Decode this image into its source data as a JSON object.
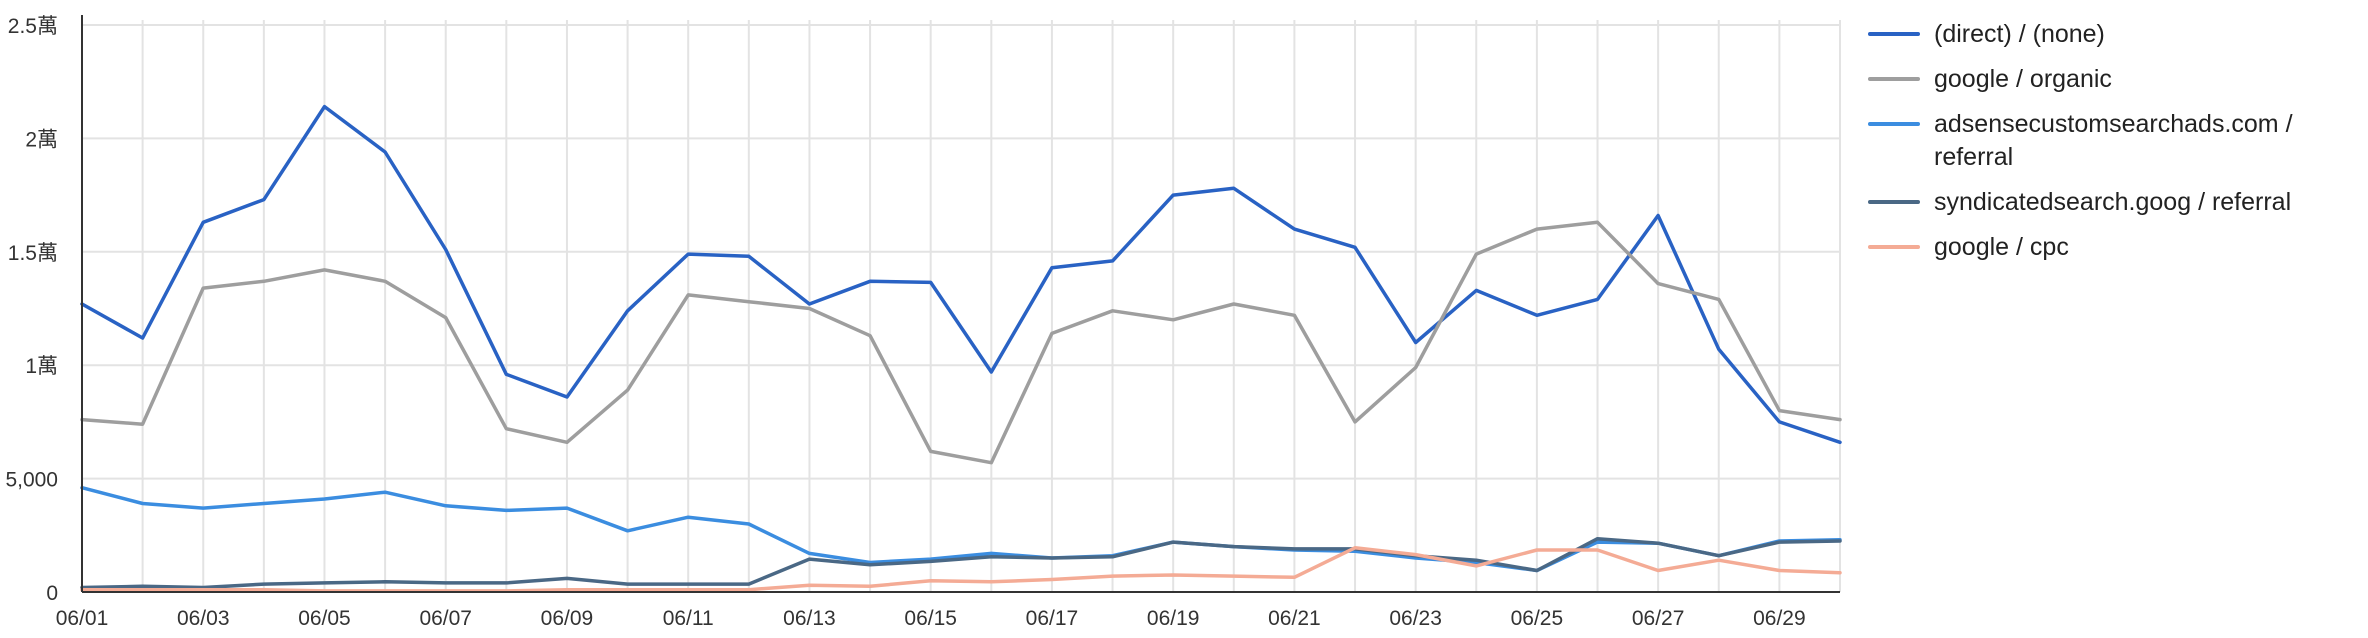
{
  "chart_data": {
    "type": "line",
    "x": [
      "06/01",
      "06/02",
      "06/03",
      "06/04",
      "06/05",
      "06/06",
      "06/07",
      "06/08",
      "06/09",
      "06/10",
      "06/11",
      "06/12",
      "06/13",
      "06/14",
      "06/15",
      "06/16",
      "06/17",
      "06/18",
      "06/19",
      "06/20",
      "06/21",
      "06/22",
      "06/23",
      "06/24",
      "06/25",
      "06/26",
      "06/27",
      "06/28",
      "06/29",
      "06/30"
    ],
    "x_tick_labels": [
      "06/01",
      "06/03",
      "06/05",
      "06/07",
      "06/09",
      "06/11",
      "06/13",
      "06/15",
      "06/17",
      "06/19",
      "06/21",
      "06/23",
      "06/25",
      "06/27",
      "06/29"
    ],
    "ylim": [
      0,
      25000
    ],
    "y_ticks": [
      0,
      5000,
      10000,
      15000,
      20000,
      25000
    ],
    "y_tick_labels": [
      "0",
      "5,000",
      "1萬",
      "1.5萬",
      "2萬",
      "2.5萬"
    ],
    "grid": true,
    "legend_position": "right",
    "series": [
      {
        "name": "(direct) / (none)",
        "color": "#2962c4",
        "values": [
          12700,
          11200,
          16300,
          17300,
          21400,
          19400,
          15100,
          9600,
          8600,
          12400,
          14900,
          14800,
          12700,
          13700,
          13650,
          9700,
          14300,
          14600,
          17500,
          17800,
          16000,
          15200,
          11000,
          13300,
          12200,
          12900,
          16600,
          10700,
          7500,
          6600
        ]
      },
      {
        "name": "google / organic",
        "color": "#9e9e9e",
        "values": [
          7600,
          7400,
          13400,
          13700,
          14200,
          13700,
          12100,
          7200,
          6600,
          8900,
          13100,
          12800,
          12500,
          11300,
          6200,
          5700,
          11400,
          12400,
          12000,
          12700,
          12200,
          7500,
          9900,
          14900,
          16000,
          16300,
          13600,
          12900,
          8000,
          7600
        ]
      },
      {
        "name": "adsensecustomsearchads.com / referral",
        "color": "#3b8de0",
        "values": [
          4600,
          3900,
          3700,
          3900,
          4100,
          4400,
          3800,
          3600,
          3700,
          2700,
          3300,
          3000,
          1700,
          1300,
          1450,
          1700,
          1500,
          1600,
          2200,
          2000,
          1850,
          1800,
          1500,
          1300,
          950,
          2200,
          2150,
          1600,
          2250,
          2300
        ]
      },
      {
        "name": "syndicatedsearch.goog / referral",
        "color": "#4a6885",
        "values": [
          200,
          250,
          200,
          350,
          400,
          450,
          400,
          400,
          600,
          350,
          350,
          350,
          1450,
          1200,
          1350,
          1550,
          1500,
          1550,
          2200,
          2000,
          1900,
          1900,
          1600,
          1400,
          950,
          2350,
          2150,
          1600,
          2200,
          2250
        ]
      },
      {
        "name": "google / cpc",
        "color": "#f4ab95",
        "values": [
          100,
          100,
          100,
          100,
          50,
          50,
          50,
          50,
          100,
          100,
          100,
          100,
          300,
          250,
          500,
          450,
          550,
          700,
          750,
          700,
          650,
          1950,
          1650,
          1150,
          1850,
          1850,
          950,
          1400,
          950,
          850
        ]
      }
    ]
  }
}
